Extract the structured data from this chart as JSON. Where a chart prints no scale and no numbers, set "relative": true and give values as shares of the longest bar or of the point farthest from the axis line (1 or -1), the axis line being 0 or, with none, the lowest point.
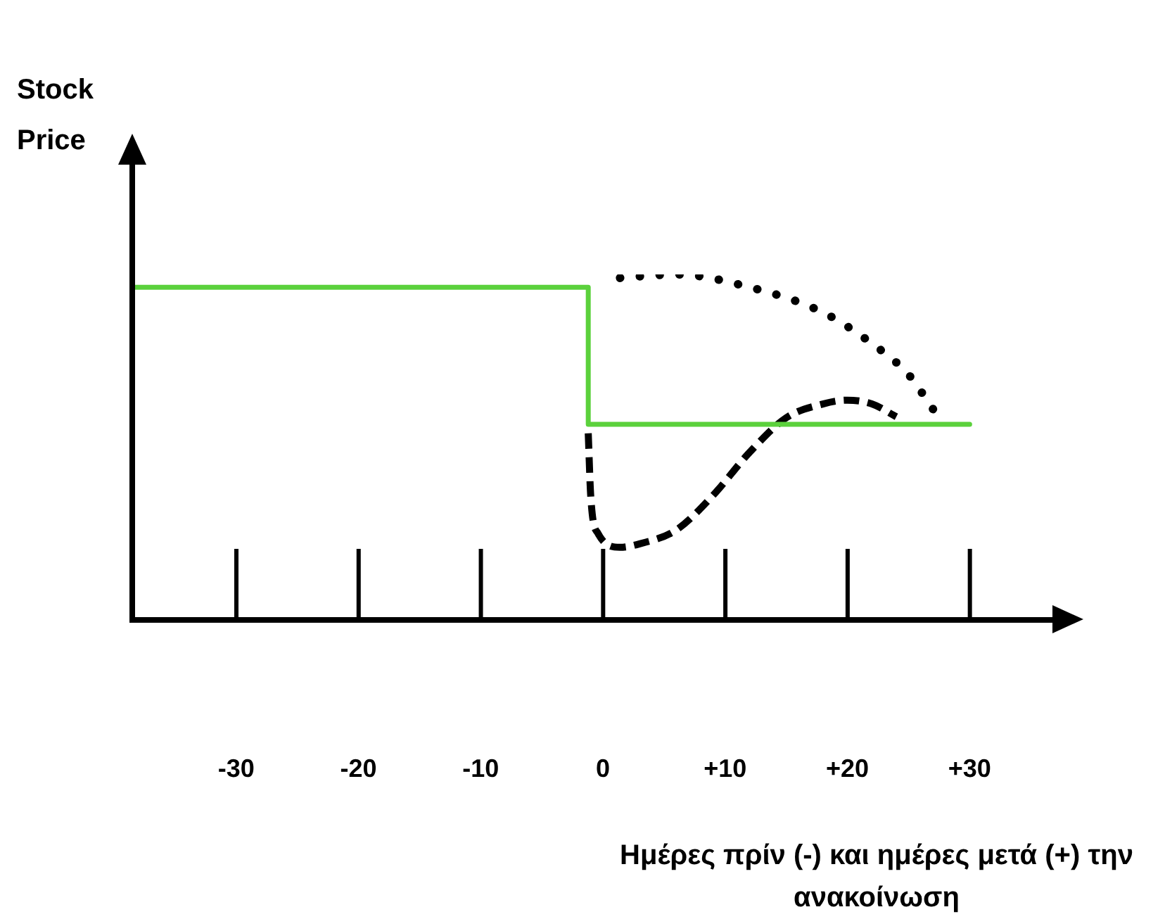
{
  "chart_data": {
    "type": "line",
    "relative": true,
    "ylabel": "Stock Price",
    "xlabel": "Ημέρες πρίν (-) και ημέρες μετά (+) την ανακοίνωση",
    "xlim": [
      -38.5,
      37
    ],
    "xticks": [
      -30,
      -20,
      -10,
      0,
      {
        "value": 10,
        "label": "+10"
      },
      {
        "value": 20,
        "label": "+20"
      },
      {
        "value": 30,
        "label": "+30"
      }
    ],
    "grid": false,
    "legend": false,
    "series": [
      {
        "color": "#5bd13c",
        "line_style": "solid",
        "x": [
          -38.5,
          -1.2,
          -1.2,
          30
        ],
        "values": [
          0.963,
          0.963,
          0.566,
          0.566
        ]
      },
      {
        "color": "#000000",
        "line_style": "dotted",
        "x": [
          1.4,
          6,
          12,
          18,
          22,
          25,
          27
        ],
        "values": [
          0.99,
          1.0,
          0.963,
          0.89,
          0.8,
          0.71,
          0.61
        ]
      },
      {
        "color": "#000000",
        "line_style": "dashed",
        "x": [
          -1.2,
          -1,
          -0.4,
          1.4,
          3,
          6,
          9,
          12,
          15,
          18,
          20,
          22,
          24
        ],
        "values": [
          0.54,
          0.36,
          0.25,
          0.21,
          0.22,
          0.26,
          0.36,
          0.485,
          0.585,
          0.625,
          0.636,
          0.625,
          0.588
        ]
      }
    ]
  }
}
